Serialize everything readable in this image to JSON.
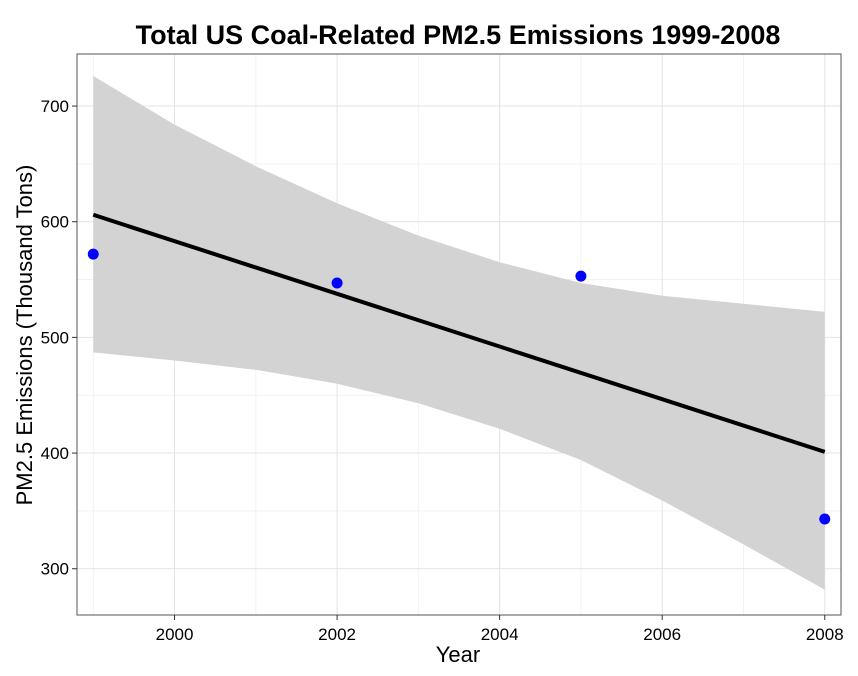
{
  "chart_data": {
    "type": "scatter",
    "title": "Total US Coal-Related PM2.5 Emissions 1999-2008",
    "xlabel": "Year",
    "ylabel": "PM2.5 Emissions (Thousand Tons)",
    "xlim": [
      1998.8,
      2008.2
    ],
    "ylim": [
      260,
      745
    ],
    "x_ticks": [
      2000,
      2002,
      2004,
      2006,
      2008
    ],
    "y_ticks": [
      300,
      400,
      500,
      600,
      700
    ],
    "grid": true,
    "series": [
      {
        "type": "scatter",
        "x": [
          1999,
          2002,
          2005,
          2008
        ],
        "y": [
          572,
          547,
          553,
          343
        ],
        "color": "#0000ff"
      }
    ],
    "trend_line": {
      "x": [
        1999,
        2008
      ],
      "y": [
        606,
        401
      ],
      "color": "#000000"
    },
    "confidence_band": {
      "x": [
        1999,
        2000,
        2001,
        2002,
        2003,
        2004,
        2005,
        2006,
        2007,
        2008
      ],
      "upper": [
        726,
        684,
        648,
        616,
        588,
        565,
        547,
        536,
        529,
        522
      ],
      "lower": [
        487,
        480,
        472,
        460,
        443,
        421,
        394,
        359,
        321,
        282
      ],
      "color": "#d3d3d3"
    }
  }
}
